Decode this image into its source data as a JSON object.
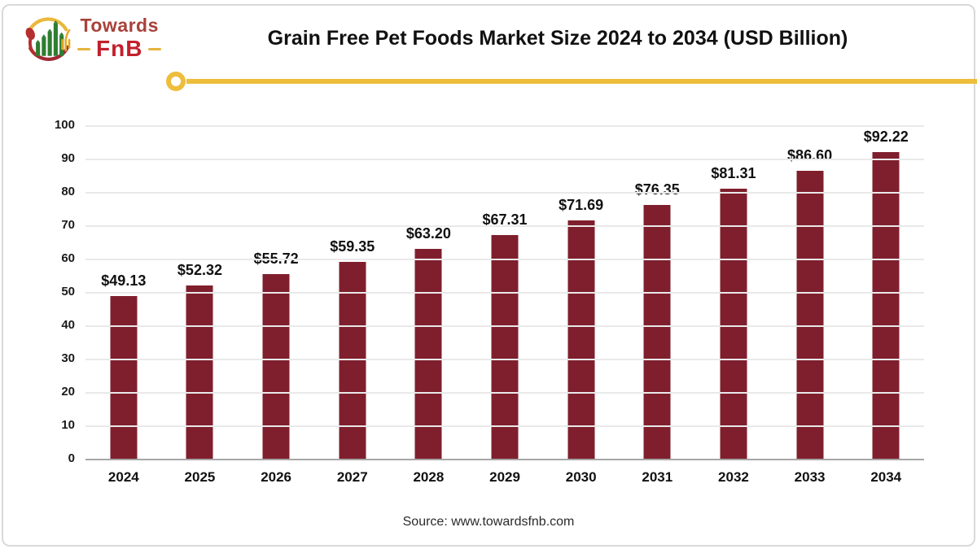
{
  "logo": {
    "brand_top": "Towards",
    "brand_bottom": "FnB",
    "icon_name": "towards-fnb-logo-icon",
    "colors": {
      "brand_top": "#a8423a",
      "brand_bottom": "#c2202c",
      "dash": "#e6b43e",
      "arc_top": "#e9b83d",
      "arc_bottom": "#a12a35",
      "bars_green": "#2e7d32",
      "spoon_red": "#b52f2f",
      "fork_gold": "#e8a825"
    }
  },
  "header": {
    "title": "Grain Free Pet Foods Market Size 2024 to 2034 (USD Billion)",
    "divider_color": "#eebd3b"
  },
  "chart_data": {
    "type": "bar",
    "title": "Grain Free Pet Foods Market Size 2024 to 2034 (USD Billion)",
    "categories": [
      "2024",
      "2025",
      "2026",
      "2027",
      "2028",
      "2029",
      "2030",
      "2031",
      "2032",
      "2033",
      "2034"
    ],
    "values": [
      49.13,
      52.32,
      55.72,
      59.35,
      63.2,
      67.31,
      71.69,
      76.35,
      81.31,
      86.6,
      92.22
    ],
    "data_labels": [
      "$49.13",
      "$52.32",
      "$55.72",
      "$59.35",
      "$63.20",
      "$67.31",
      "$71.69",
      "$76.35",
      "$81.31",
      "$86.60",
      "$92.22"
    ],
    "xlabel": "",
    "ylabel": "",
    "ylim": [
      0,
      100
    ],
    "yticks": [
      0,
      10,
      20,
      30,
      40,
      50,
      60,
      70,
      80,
      90,
      100
    ],
    "grid": true,
    "legend": "none",
    "bar_color": "#7f1f2d",
    "gridline_color": "#e9e9e9",
    "axis_line_color": "#a6a6a6"
  },
  "footer": {
    "source": "Source: www.towardsfnb.com"
  }
}
